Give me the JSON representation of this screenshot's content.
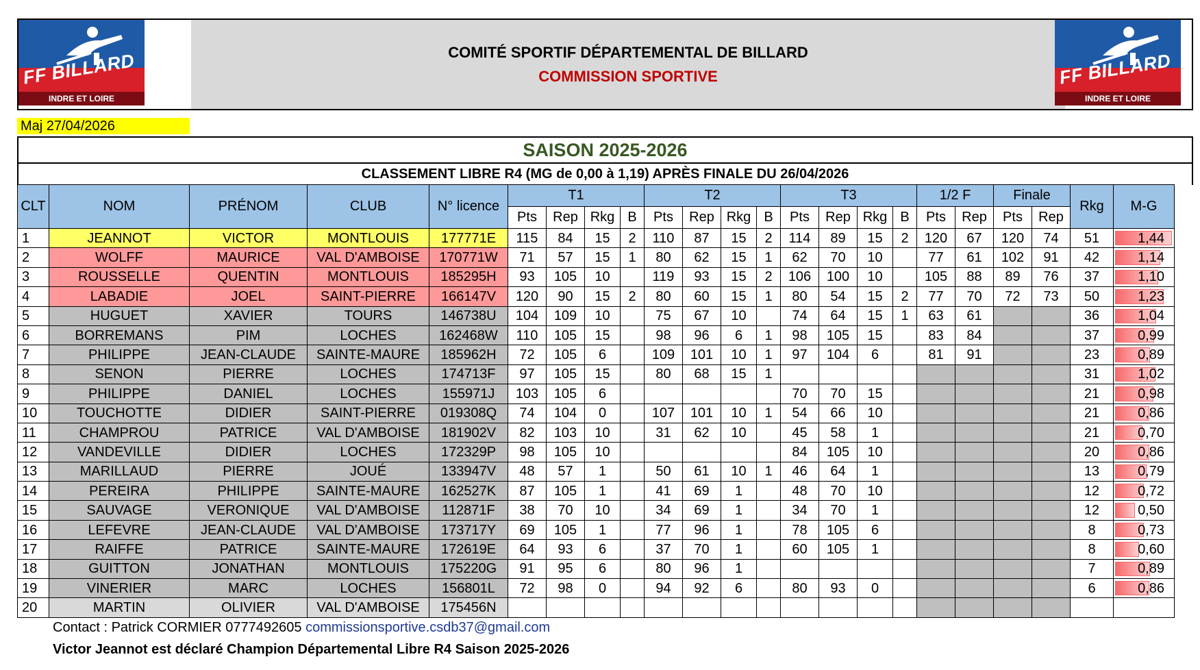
{
  "header": {
    "title": "COMITÉ SPORTIF DÉPARTEMENTAL DE BILLARD",
    "subtitle": "COMMISSION SPORTIVE",
    "logo_brand": "FF BILLARD",
    "logo_dept": "INDRE ET LOIRE"
  },
  "maj": "Maj  27/04/2026",
  "season": "SAISON 2025-2026",
  "classement": "CLASSEMENT LIBRE R4 (MG de 0,00 à 1,19) APRÈS FINALE DU 26/04/2026",
  "columns": {
    "clt": "CLT",
    "nom": "NOM",
    "prenom": "PRÉNOM",
    "club": "CLUB",
    "licence": "N° licence",
    "t1": "T1",
    "t2": "T2",
    "t3": "T3",
    "demi": "1/2 F",
    "finale": "Finale",
    "rkg": "Rkg",
    "mg": "M-G",
    "pts": "Pts",
    "rep": "Rep",
    "rkg_sub": "Rkg",
    "b": "B"
  },
  "colors": {
    "highlight": "#ffff66",
    "podium": "#ff9999",
    "player": "#bfbfbf",
    "header": "#9dc3e6",
    "season": "#385723"
  },
  "rows": [
    {
      "clt": "1",
      "nom": "JEANNOT",
      "prenom": "VICTOR",
      "club": "MONTLOUIS",
      "licence": "177771E",
      "t1": [
        "115",
        "84",
        "15",
        "2"
      ],
      "t2": [
        "110",
        "87",
        "15",
        "2"
      ],
      "t3": [
        "114",
        "89",
        "15",
        "2"
      ],
      "demi": [
        "120",
        "67"
      ],
      "finale": [
        "120",
        "74"
      ],
      "rkg": "51",
      "mg": "1,44",
      "mg_value": 1.44,
      "style": "hl"
    },
    {
      "clt": "2",
      "nom": "WOLFF",
      "prenom": "MAURICE",
      "club": "VAL D'AMBOISE",
      "licence": "170771W",
      "t1": [
        "71",
        "57",
        "15",
        "1"
      ],
      "t2": [
        "80",
        "62",
        "15",
        "1"
      ],
      "t3": [
        "62",
        "70",
        "10",
        ""
      ],
      "demi": [
        "77",
        "61"
      ],
      "finale": [
        "102",
        "91"
      ],
      "rkg": "42",
      "mg": "1,14",
      "mg_value": 1.14,
      "style": "rd"
    },
    {
      "clt": "3",
      "nom": "ROUSSELLE",
      "prenom": "QUENTIN",
      "club": "MONTLOUIS",
      "licence": "185295H",
      "t1": [
        "93",
        "105",
        "10",
        ""
      ],
      "t2": [
        "119",
        "93",
        "15",
        "2"
      ],
      "t3": [
        "106",
        "100",
        "10",
        ""
      ],
      "demi": [
        "105",
        "88"
      ],
      "finale": [
        "89",
        "76"
      ],
      "rkg": "37",
      "mg": "1,10",
      "mg_value": 1.1,
      "style": "rd"
    },
    {
      "clt": "4",
      "nom": "LABADIE",
      "prenom": "JOEL",
      "club": "SAINT-PIERRE",
      "licence": "166147V",
      "t1": [
        "120",
        "90",
        "15",
        "2"
      ],
      "t2": [
        "80",
        "60",
        "15",
        "1"
      ],
      "t3": [
        "80",
        "54",
        "15",
        "2"
      ],
      "demi": [
        "77",
        "70"
      ],
      "finale": [
        "72",
        "73"
      ],
      "rkg": "50",
      "mg": "1,23",
      "mg_value": 1.23,
      "style": "rd"
    },
    {
      "clt": "5",
      "nom": "HUGUET",
      "prenom": "XAVIER",
      "club": "TOURS",
      "licence": "146738U",
      "t1": [
        "104",
        "109",
        "10",
        ""
      ],
      "t2": [
        "75",
        "67",
        "10",
        ""
      ],
      "t3": [
        "74",
        "64",
        "15",
        "1"
      ],
      "demi": [
        "63",
        "61"
      ],
      "finale": [
        "",
        ""
      ],
      "rkg": "36",
      "mg": "1,04",
      "mg_value": 1.04,
      "style": "gy"
    },
    {
      "clt": "6",
      "nom": "BORREMANS",
      "prenom": "PIM",
      "club": "LOCHES",
      "licence": "162468W",
      "t1": [
        "110",
        "105",
        "15",
        ""
      ],
      "t2": [
        "98",
        "96",
        "6",
        "1"
      ],
      "t3": [
        "98",
        "105",
        "15",
        ""
      ],
      "demi": [
        "83",
        "84"
      ],
      "finale": [
        "",
        ""
      ],
      "rkg": "37",
      "mg": "0,99",
      "mg_value": 0.99,
      "style": "gy"
    },
    {
      "clt": "7",
      "nom": "PHILIPPE",
      "prenom": "JEAN-CLAUDE",
      "club": "SAINTE-MAURE",
      "licence": "185962H",
      "t1": [
        "72",
        "105",
        "6",
        ""
      ],
      "t2": [
        "109",
        "101",
        "10",
        "1"
      ],
      "t3": [
        "97",
        "104",
        "6",
        ""
      ],
      "demi": [
        "81",
        "91"
      ],
      "finale": [
        "",
        ""
      ],
      "rkg": "23",
      "mg": "0,89",
      "mg_value": 0.89,
      "style": "gy"
    },
    {
      "clt": "8",
      "nom": "SENON",
      "prenom": "PIERRE",
      "club": "LOCHES",
      "licence": "174713F",
      "t1": [
        "97",
        "105",
        "15",
        ""
      ],
      "t2": [
        "80",
        "68",
        "15",
        "1"
      ],
      "t3": [
        "",
        "",
        "",
        ""
      ],
      "demi": [
        "",
        ""
      ],
      "finale": [
        "",
        ""
      ],
      "rkg": "31",
      "mg": "1,02",
      "mg_value": 1.02,
      "style": "gy"
    },
    {
      "clt": "9",
      "nom": "PHILIPPE",
      "prenom": "DANIEL",
      "club": "LOCHES",
      "licence": "155971J",
      "t1": [
        "103",
        "105",
        "6",
        ""
      ],
      "t2": [
        "",
        "",
        "",
        ""
      ],
      "t3": [
        "70",
        "70",
        "15",
        ""
      ],
      "demi": [
        "",
        ""
      ],
      "finale": [
        "",
        ""
      ],
      "rkg": "21",
      "mg": "0,98",
      "mg_value": 0.98,
      "style": "gy"
    },
    {
      "clt": "10",
      "nom": "TOUCHOTTE",
      "prenom": "DIDIER",
      "club": "SAINT-PIERRE",
      "licence": "019308Q",
      "t1": [
        "74",
        "104",
        "0",
        ""
      ],
      "t2": [
        "107",
        "101",
        "10",
        "1"
      ],
      "t3": [
        "54",
        "66",
        "10",
        ""
      ],
      "demi": [
        "",
        ""
      ],
      "finale": [
        "",
        ""
      ],
      "rkg": "21",
      "mg": "0,86",
      "mg_value": 0.86,
      "style": "gy"
    },
    {
      "clt": "11",
      "nom": "CHAMPROU",
      "prenom": "PATRICE",
      "club": "VAL D'AMBOISE",
      "licence": "181902V",
      "t1": [
        "82",
        "103",
        "10",
        ""
      ],
      "t2": [
        "31",
        "62",
        "10",
        ""
      ],
      "t3": [
        "45",
        "58",
        "1",
        ""
      ],
      "demi": [
        "",
        ""
      ],
      "finale": [
        "",
        ""
      ],
      "rkg": "21",
      "mg": "0,70",
      "mg_value": 0.7,
      "style": "gy"
    },
    {
      "clt": "12",
      "nom": "VANDEVILLE",
      "prenom": "DIDIER",
      "club": "LOCHES",
      "licence": "172329P",
      "t1": [
        "98",
        "105",
        "10",
        ""
      ],
      "t2": [
        "",
        "",
        "",
        ""
      ],
      "t3": [
        "84",
        "105",
        "10",
        ""
      ],
      "demi": [
        "",
        ""
      ],
      "finale": [
        "",
        ""
      ],
      "rkg": "20",
      "mg": "0,86",
      "mg_value": 0.86,
      "style": "gy"
    },
    {
      "clt": "13",
      "nom": "MARILLAUD",
      "prenom": "PIERRE",
      "club": "JOUÉ",
      "licence": "133947V",
      "t1": [
        "48",
        "57",
        "1",
        ""
      ],
      "t2": [
        "50",
        "61",
        "10",
        "1"
      ],
      "t3": [
        "46",
        "64",
        "1",
        ""
      ],
      "demi": [
        "",
        ""
      ],
      "finale": [
        "",
        ""
      ],
      "rkg": "13",
      "mg": "0,79",
      "mg_value": 0.79,
      "style": "gy"
    },
    {
      "clt": "14",
      "nom": "PEREIRA",
      "prenom": "PHILIPPE",
      "club": "SAINTE-MAURE",
      "licence": "162527K",
      "t1": [
        "87",
        "105",
        "1",
        ""
      ],
      "t2": [
        "41",
        "69",
        "1",
        ""
      ],
      "t3": [
        "48",
        "70",
        "10",
        ""
      ],
      "demi": [
        "",
        ""
      ],
      "finale": [
        "",
        ""
      ],
      "rkg": "12",
      "mg": "0,72",
      "mg_value": 0.72,
      "style": "gy"
    },
    {
      "clt": "15",
      "nom": "SAUVAGE",
      "prenom": "VERONIQUE",
      "club": "VAL D'AMBOISE",
      "licence": "112871F",
      "t1": [
        "38",
        "70",
        "10",
        ""
      ],
      "t2": [
        "34",
        "69",
        "1",
        ""
      ],
      "t3": [
        "34",
        "70",
        "1",
        ""
      ],
      "demi": [
        "",
        ""
      ],
      "finale": [
        "",
        ""
      ],
      "rkg": "12",
      "mg": "0,50",
      "mg_value": 0.5,
      "style": "gy"
    },
    {
      "clt": "16",
      "nom": "LEFEVRE",
      "prenom": "JEAN-CLAUDE",
      "club": "VAL D'AMBOISE",
      "licence": "173717Y",
      "t1": [
        "69",
        "105",
        "1",
        ""
      ],
      "t2": [
        "77",
        "96",
        "1",
        ""
      ],
      "t3": [
        "78",
        "105",
        "6",
        ""
      ],
      "demi": [
        "",
        ""
      ],
      "finale": [
        "",
        ""
      ],
      "rkg": "8",
      "mg": "0,73",
      "mg_value": 0.73,
      "style": "gy"
    },
    {
      "clt": "17",
      "nom": "RAIFFE",
      "prenom": "PATRICE",
      "club": "SAINTE-MAURE",
      "licence": "172619E",
      "t1": [
        "64",
        "93",
        "6",
        ""
      ],
      "t2": [
        "37",
        "70",
        "1",
        ""
      ],
      "t3": [
        "60",
        "105",
        "1",
        ""
      ],
      "demi": [
        "",
        ""
      ],
      "finale": [
        "",
        ""
      ],
      "rkg": "8",
      "mg": "0,60",
      "mg_value": 0.6,
      "style": "gy"
    },
    {
      "clt": "18",
      "nom": "GUITTON",
      "prenom": "JONATHAN",
      "club": "MONTLOUIS",
      "licence": "175220G",
      "t1": [
        "91",
        "95",
        "6",
        ""
      ],
      "t2": [
        "80",
        "96",
        "1",
        ""
      ],
      "t3": [
        "",
        "",
        "",
        ""
      ],
      "demi": [
        "",
        ""
      ],
      "finale": [
        "",
        ""
      ],
      "rkg": "7",
      "mg": "0,89",
      "mg_value": 0.89,
      "style": "gy"
    },
    {
      "clt": "19",
      "nom": "VINERIER",
      "prenom": "MARC",
      "club": "LOCHES",
      "licence": "156801L",
      "t1": [
        "72",
        "98",
        "0",
        ""
      ],
      "t2": [
        "94",
        "92",
        "6",
        ""
      ],
      "t3": [
        "80",
        "93",
        "0",
        ""
      ],
      "demi": [
        "",
        ""
      ],
      "finale": [
        "",
        ""
      ],
      "rkg": "6",
      "mg": "0,86",
      "mg_value": 0.86,
      "style": "gy"
    },
    {
      "clt": "20",
      "nom": "MARTIN",
      "prenom": "OLIVIER",
      "club": "VAL D'AMBOISE",
      "licence": "175456N",
      "t1": [
        "",
        "",
        "",
        ""
      ],
      "t2": [
        "",
        "",
        "",
        ""
      ],
      "t3": [
        "",
        "",
        "",
        ""
      ],
      "demi": [
        "",
        ""
      ],
      "finale": [
        "",
        ""
      ],
      "rkg": "",
      "mg": "",
      "mg_value": null,
      "style": "lg"
    }
  ],
  "footer": {
    "contact_label": "Contact : Patrick CORMIER 0777492605",
    "email": "commissionsportive.csdb37@gmail.com",
    "champion": "Victor Jeannot est déclaré Champion Départemental Libre R4 Saison 2025-2026"
  }
}
